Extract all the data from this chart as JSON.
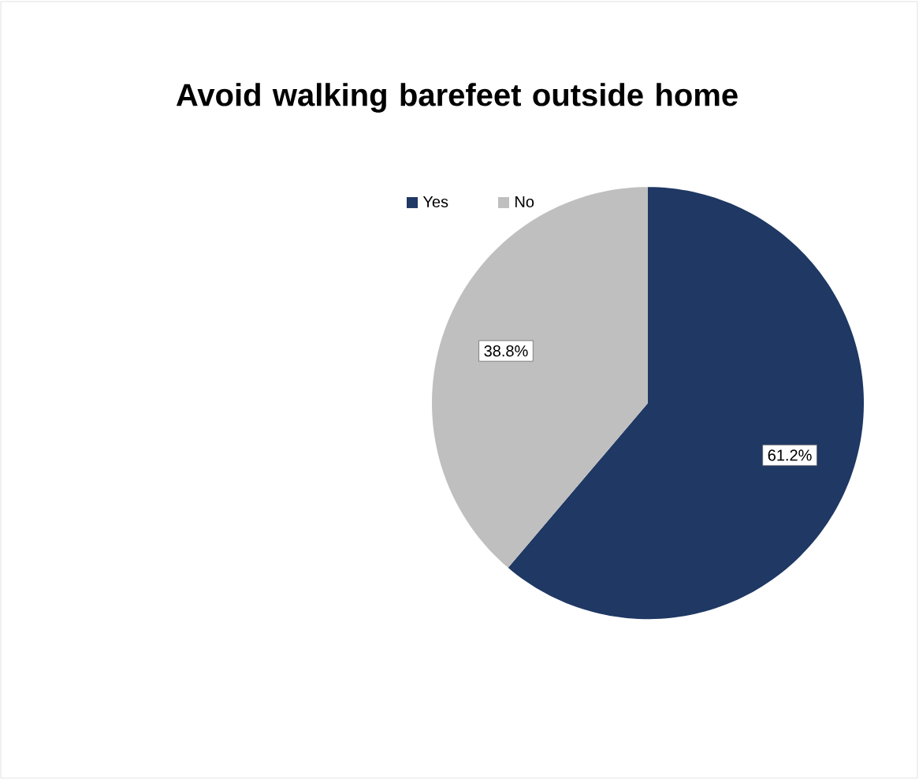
{
  "chart_data": {
    "type": "pie",
    "title": "Avoid walking barefeet outside home",
    "categories": [
      "Yes",
      "No"
    ],
    "values": [
      61.2,
      38.8
    ],
    "colors": [
      "#1f3864",
      "#bfbfbf"
    ],
    "value_labels": [
      "61.2%",
      "38.8%"
    ],
    "legend": "top"
  }
}
